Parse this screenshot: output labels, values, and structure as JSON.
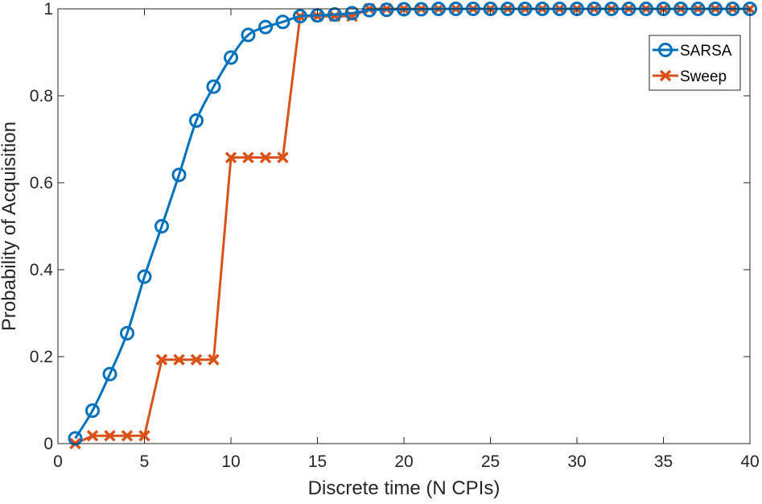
{
  "chart_data": {
    "type": "line",
    "title": "",
    "xlabel": "Discrete time (N CPIs)",
    "ylabel": "Probability of Acquisition",
    "xlim": [
      0,
      40
    ],
    "ylim": [
      0,
      1
    ],
    "xticks": [
      "0",
      "5",
      "10",
      "15",
      "20",
      "25",
      "30",
      "35",
      "40"
    ],
    "yticks": [
      "0",
      "0.2",
      "0.4",
      "0.6",
      "0.8",
      "1"
    ],
    "grid": false,
    "legend_position": "top-right",
    "x": [
      1,
      2,
      3,
      4,
      5,
      6,
      7,
      8,
      9,
      10,
      11,
      12,
      13,
      14,
      15,
      16,
      17,
      18,
      19,
      20,
      21,
      22,
      23,
      24,
      25,
      26,
      27,
      28,
      29,
      30,
      31,
      32,
      33,
      34,
      35,
      36,
      37,
      38,
      39,
      40
    ],
    "series": [
      {
        "name": "SARSA",
        "color": "#0072BD",
        "marker": "circle",
        "line": "smooth",
        "values": [
          0.012,
          0.076,
          0.16,
          0.254,
          0.384,
          0.5,
          0.618,
          0.743,
          0.821,
          0.888,
          0.94,
          0.958,
          0.97,
          0.983,
          0.985,
          0.987,
          0.99,
          0.997,
          0.998,
          0.999,
          0.999,
          1,
          1,
          1,
          1,
          1,
          1,
          1,
          1,
          1,
          1,
          1,
          1,
          1,
          1,
          1,
          1,
          1,
          1,
          1
        ]
      },
      {
        "name": "Sweep",
        "color": "#D95319",
        "marker": "x",
        "line": "step",
        "values": [
          0,
          0.018,
          0.018,
          0.018,
          0.018,
          0.193,
          0.193,
          0.193,
          0.193,
          0.658,
          0.658,
          0.658,
          0.658,
          0.983,
          0.983,
          0.983,
          0.983,
          1,
          1,
          1,
          1,
          1,
          1,
          1,
          1,
          1,
          1,
          1,
          1,
          1,
          1,
          1,
          1,
          1,
          1,
          1,
          1,
          1,
          1,
          1
        ]
      }
    ]
  }
}
